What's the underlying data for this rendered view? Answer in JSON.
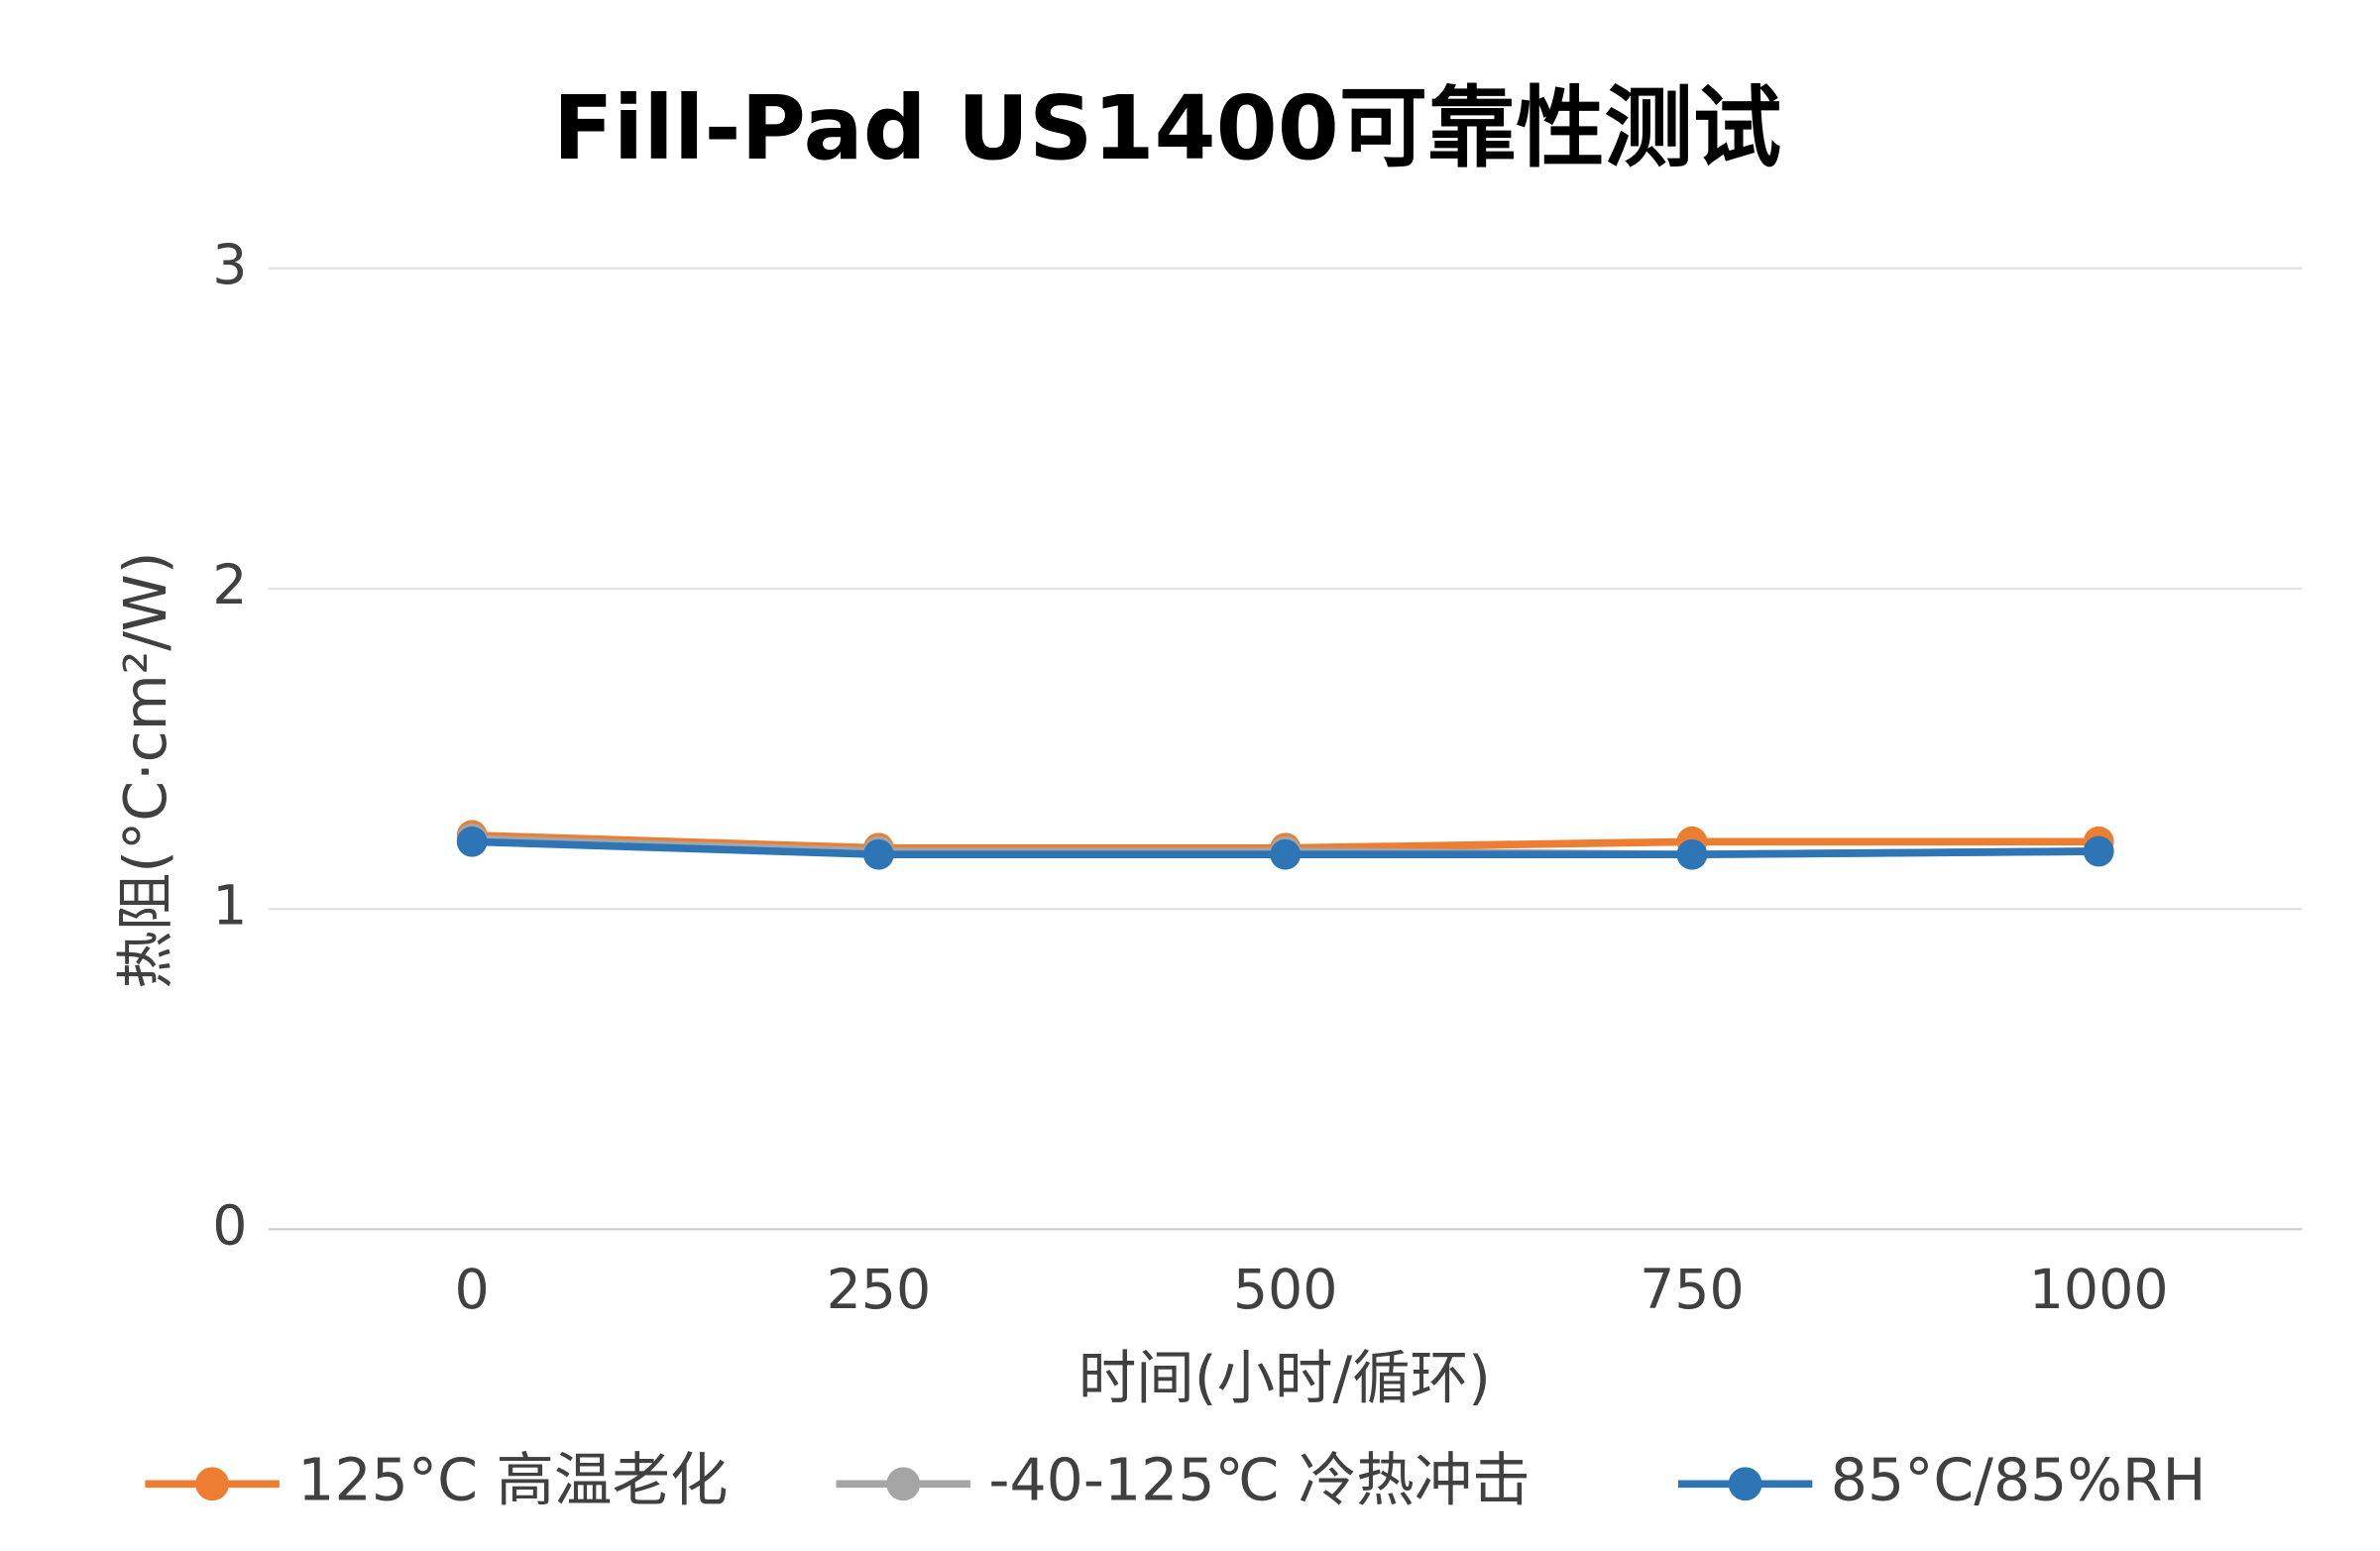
{
  "chart_data": {
    "type": "line",
    "title": "Fill-Pad US1400可靠性测试",
    "x_label": "时间(小时/循环)",
    "y_label": "热阻(°C·cm²/W)",
    "categories": [
      "0",
      "250",
      "500",
      "750",
      "1000"
    ],
    "series": [
      {
        "name": "125°C 高温老化",
        "color": "#ed7d31",
        "values": [
          1.23,
          1.19,
          1.19,
          1.21,
          1.21
        ]
      },
      {
        "name": "-40-125℃ 冷热冲击",
        "color": "#a5a5a5",
        "values": [
          1.22,
          1.18,
          1.18,
          1.17,
          1.18
        ]
      },
      {
        "name": "85°C/85%RH",
        "color": "#2e75b6",
        "values": [
          1.21,
          1.17,
          1.17,
          1.17,
          1.18
        ]
      }
    ],
    "ylim": [
      0,
      3
    ],
    "yticks": [
      0,
      1,
      2,
      3
    ],
    "grid": true,
    "legend": "bottom"
  }
}
